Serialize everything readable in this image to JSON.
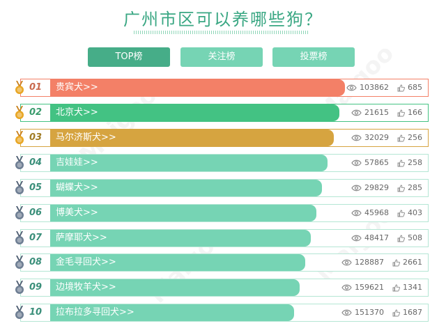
{
  "title": "广州市区可以养哪些狗？",
  "tabs": [
    {
      "label": "TOP榜"
    },
    {
      "label": "关注榜"
    },
    {
      "label": "投票榜"
    }
  ],
  "watermark": "Maigoo",
  "colors": {
    "accent": "#3aa783",
    "tab_active": "#46ad88",
    "tab_inactive": "#76d4b4",
    "rank1": "#f38067",
    "rank2": "#43c283",
    "rank3": "#d6a440",
    "others": "#76d4b4"
  },
  "rows": [
    {
      "rank": "01",
      "name": "贵宾犬>>",
      "views": "103862",
      "likes": "685",
      "medal": "gold",
      "bar_fill": 0.78
    },
    {
      "rank": "02",
      "name": "北京犬>>",
      "views": "21615",
      "likes": "166",
      "medal": "gold",
      "bar_fill": 0.765
    },
    {
      "rank": "03",
      "name": "马尔济斯犬>>",
      "views": "32029",
      "likes": "256",
      "medal": "gold",
      "bar_fill": 0.75
    },
    {
      "rank": "04",
      "name": "吉娃娃>>",
      "views": "57865",
      "likes": "258",
      "medal": "silver",
      "bar_fill": 0.735
    },
    {
      "rank": "05",
      "name": "蝴蝶犬>>",
      "views": "29829",
      "likes": "285",
      "medal": "silver",
      "bar_fill": 0.72
    },
    {
      "rank": "06",
      "name": "博美犬>>",
      "views": "45968",
      "likes": "403",
      "medal": "silver",
      "bar_fill": 0.705
    },
    {
      "rank": "07",
      "name": "萨摩耶犬>>",
      "views": "48417",
      "likes": "508",
      "medal": "silver",
      "bar_fill": 0.69
    },
    {
      "rank": "08",
      "name": "金毛寻回犬>>",
      "views": "128887",
      "likes": "2661",
      "medal": "silver",
      "bar_fill": 0.675
    },
    {
      "rank": "09",
      "name": "边境牧羊犬>>",
      "views": "159621",
      "likes": "1341",
      "medal": "silver",
      "bar_fill": 0.66
    },
    {
      "rank": "10",
      "name": "拉布拉多寻回犬>>",
      "views": "151370",
      "likes": "1687",
      "medal": "silver",
      "bar_fill": 0.645
    }
  ]
}
